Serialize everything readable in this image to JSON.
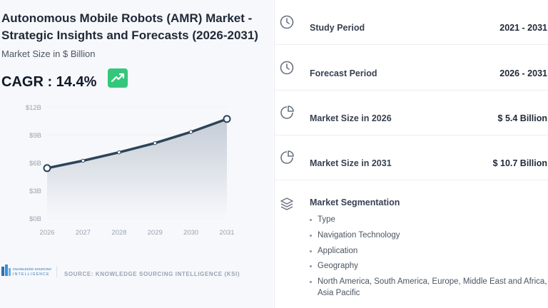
{
  "title": "Autonomous Mobile Robots (AMR) Market - Strategic Insights and Forecasts (2026-2031)",
  "subtitle": "Market Size in $ Billion",
  "cagr": "CAGR : 14.4%",
  "source": "SOURCE: KNOWLEDGE SOURCING INTELLIGENCE (KSI)",
  "logo_text": "KNOWLEDGE SOURCING INTELLIGENCE",
  "chart_data": {
    "type": "area",
    "x": [
      "2026",
      "2027",
      "2028",
      "2029",
      "2030",
      "2031"
    ],
    "values": [
      5.4,
      6.2,
      7.1,
      8.1,
      9.3,
      10.7
    ],
    "ylim": [
      0,
      12
    ],
    "yticks": [
      "$0B",
      "$3B",
      "$6B",
      "$9B",
      "$12B"
    ],
    "ytick_values": [
      0,
      3,
      6,
      9,
      12
    ],
    "grid": true,
    "line_color": "#2d4358"
  },
  "stats": [
    {
      "icon": "clock-icon",
      "label": "Study Period",
      "value": "2021 - 2031"
    },
    {
      "icon": "clock-icon",
      "label": "Forecast Period",
      "value": "2026 - 2031"
    },
    {
      "icon": "pie-chart-icon",
      "label": "Market Size in 2026",
      "value": "$ 5.4 Billion"
    },
    {
      "icon": "pie-chart-icon",
      "label": "Market Size in 2031",
      "value": "$ 10.7 Billion"
    }
  ],
  "segmentation": {
    "title": "Market Segmentation",
    "items": [
      "Type",
      "Navigation Technology",
      "Application",
      "Geography",
      "North America, South America, Europe, Middle East and Africa, Asia Pacific"
    ]
  },
  "colors": {
    "accent": "#34c77b",
    "icon": "#6b7280"
  }
}
